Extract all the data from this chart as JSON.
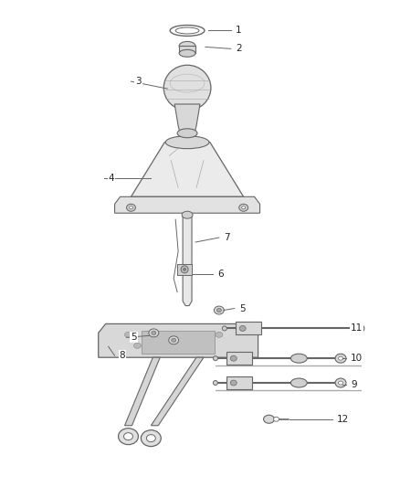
{
  "bg_color": "#ffffff",
  "line_color": "#666666",
  "label_color": "#222222",
  "fig_width": 4.38,
  "fig_height": 5.33,
  "dpi": 100
}
